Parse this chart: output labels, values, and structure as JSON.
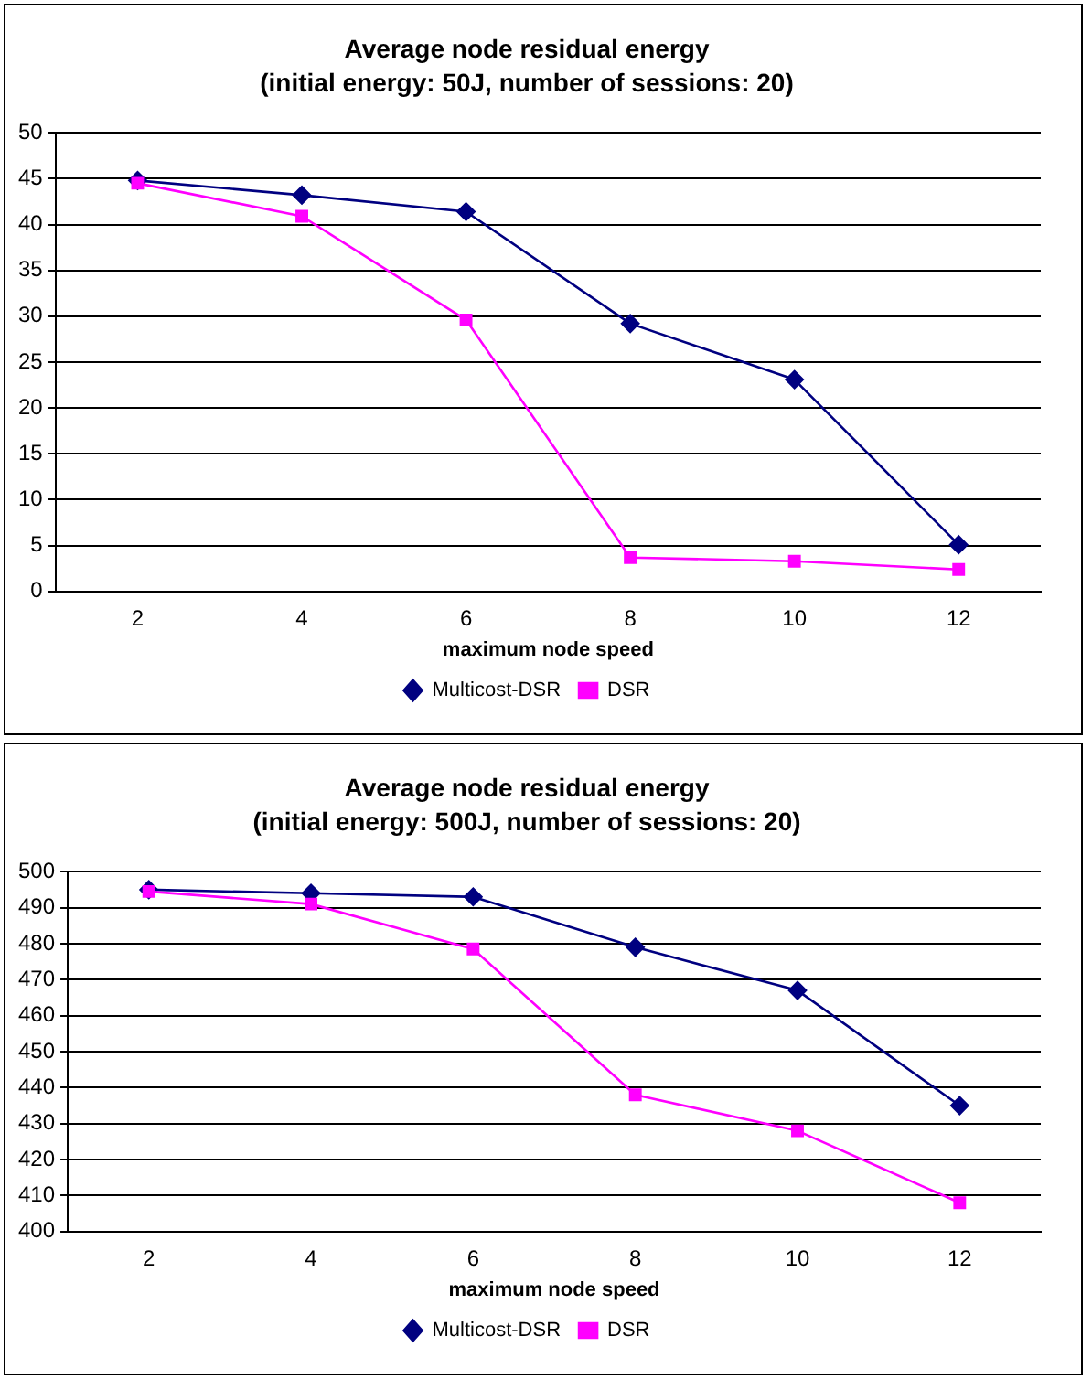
{
  "chart_data": [
    {
      "type": "line",
      "title": "Average node residual energy",
      "subtitle": "(initial energy: 50J, number of sessions: 20)",
      "xlabel": "maximum node speed",
      "categories": [
        "2",
        "4",
        "6",
        "8",
        "10",
        "12"
      ],
      "ylim": [
        0,
        50
      ],
      "yticks": [
        0,
        5,
        10,
        15,
        20,
        25,
        30,
        35,
        40,
        45,
        50
      ],
      "grid": "y",
      "legend": "bottom",
      "line_style": "solid",
      "series": [
        {
          "name": "Multicost-DSR",
          "color": "#000080",
          "marker": "diamond",
          "values": [
            44.8,
            43.2,
            41.4,
            29.2,
            23.1,
            5.1
          ]
        },
        {
          "name": "DSR",
          "color": "#ff00ff",
          "marker": "square",
          "values": [
            44.5,
            40.9,
            29.6,
            3.7,
            3.3,
            2.4
          ]
        }
      ]
    },
    {
      "type": "line",
      "title": "Average node residual energy",
      "subtitle": "(initial energy: 500J, number of sessions: 20)",
      "xlabel": "maximum node speed",
      "categories": [
        "2",
        "4",
        "6",
        "8",
        "10",
        "12"
      ],
      "ylim": [
        400,
        500
      ],
      "yticks": [
        400,
        410,
        420,
        430,
        440,
        450,
        460,
        470,
        480,
        490,
        500
      ],
      "grid": "y",
      "legend": "bottom",
      "line_style": "solid",
      "series": [
        {
          "name": "Multicost-DSR",
          "color": "#000080",
          "marker": "diamond",
          "values": [
            495,
            494,
            493,
            479,
            467,
            435
          ]
        },
        {
          "name": "DSR",
          "color": "#ff00ff",
          "marker": "square",
          "values": [
            494.5,
            491,
            478.5,
            438,
            428,
            408
          ]
        }
      ]
    }
  ]
}
